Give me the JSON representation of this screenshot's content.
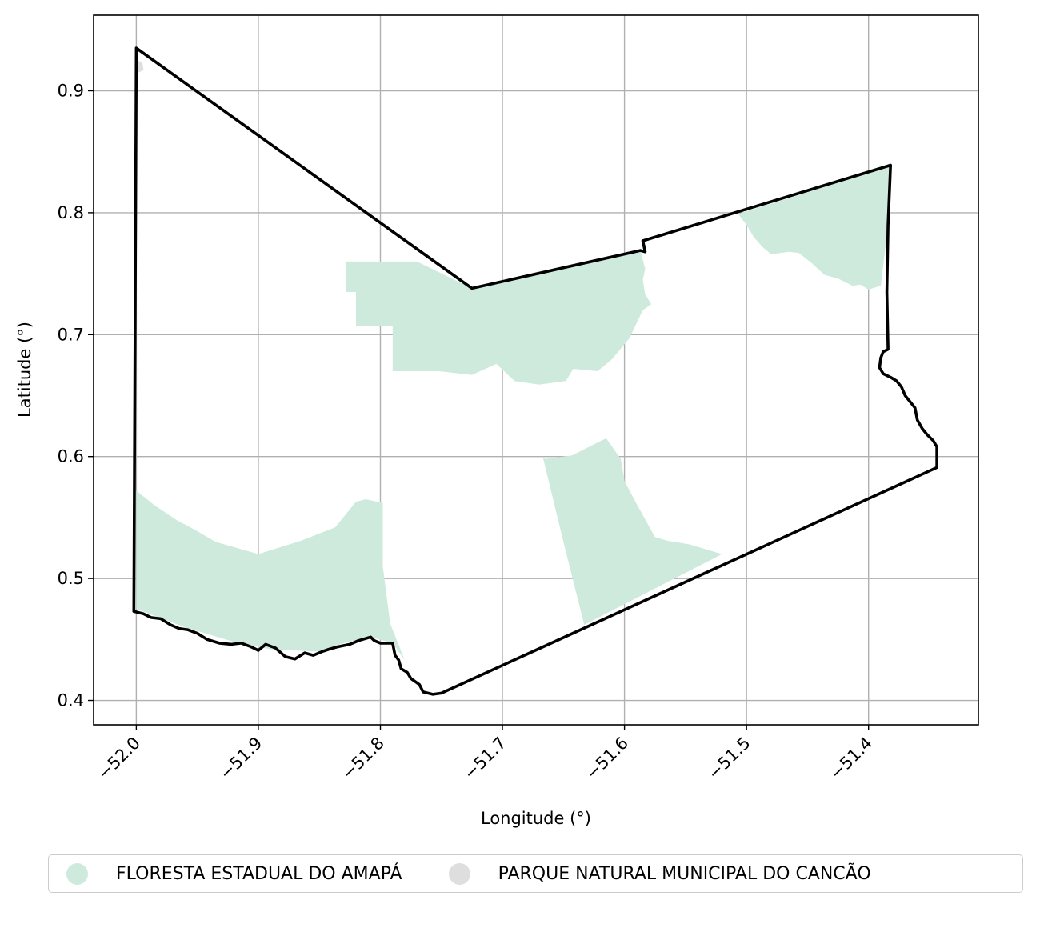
{
  "chart_data": {
    "type": "map",
    "title": "",
    "xlabel": "Longitude (°)",
    "ylabel": "Latitude (°)",
    "xlim": [
      -52.035,
      -51.31
    ],
    "ylim": [
      0.38,
      0.962
    ],
    "grid": true,
    "x_ticks": [
      -52.0,
      -51.9,
      -51.8,
      -51.7,
      -51.6,
      -51.5,
      -51.4
    ],
    "x_tick_labels": [
      "−52.0",
      "−51.9",
      "−51.8",
      "−51.7",
      "−51.6",
      "−51.5",
      "−51.4"
    ],
    "y_ticks": [
      0.4,
      0.5,
      0.6,
      0.7,
      0.8,
      0.9
    ],
    "y_tick_labels": [
      "0.4",
      "0.5",
      "0.6",
      "0.7",
      "0.8",
      "0.9"
    ],
    "colors": {
      "floresta": "#ceeadd",
      "parque": "#dedede",
      "boundary": "#000000",
      "grid": "#b0b0b0"
    },
    "layers": [
      {
        "name": "FLORESTA ESTADUAL DO AMAPÁ",
        "color": "#ceeadd",
        "polygons": [
          [
            [
              -51.828,
              0.76
            ],
            [
              -51.77,
              0.76
            ],
            [
              -51.725,
              0.738
            ],
            [
              -51.587,
              0.769
            ],
            [
              -51.583,
              0.754
            ],
            [
              -51.585,
              0.745
            ],
            [
              -51.583,
              0.733
            ],
            [
              -51.578,
              0.725
            ],
            [
              -51.585,
              0.72
            ],
            [
              -51.596,
              0.697
            ],
            [
              -51.61,
              0.68
            ],
            [
              -51.622,
              0.67
            ],
            [
              -51.642,
              0.672
            ],
            [
              -51.648,
              0.662
            ],
            [
              -51.67,
              0.659
            ],
            [
              -51.69,
              0.662
            ],
            [
              -51.705,
              0.676
            ],
            [
              -51.725,
              0.667
            ],
            [
              -51.752,
              0.67
            ],
            [
              -51.79,
              0.67
            ],
            [
              -51.79,
              0.707
            ],
            [
              -51.8,
              0.707
            ],
            [
              -51.82,
              0.707
            ],
            [
              -51.82,
              0.735
            ],
            [
              -51.828,
              0.735
            ]
          ],
          [
            [
              -51.507,
              0.799
            ],
            [
              -51.382,
              0.838
            ],
            [
              -51.384,
              0.79
            ],
            [
              -51.39,
              0.74
            ],
            [
              -51.4,
              0.737
            ],
            [
              -51.407,
              0.741
            ],
            [
              -51.413,
              0.74
            ],
            [
              -51.425,
              0.746
            ],
            [
              -51.436,
              0.749
            ],
            [
              -51.447,
              0.759
            ],
            [
              -51.457,
              0.767
            ],
            [
              -51.465,
              0.768
            ],
            [
              -51.48,
              0.766
            ],
            [
              -51.487,
              0.772
            ],
            [
              -51.494,
              0.78
            ],
            [
              -51.5,
              0.79
            ]
          ],
          [
            [
              -51.667,
              0.6
            ],
            [
              -51.665,
              0.598
            ],
            [
              -51.643,
              0.601
            ],
            [
              -51.615,
              0.615
            ],
            [
              -51.603,
              0.598
            ],
            [
              -51.6,
              0.58
            ],
            [
              -51.59,
              0.561
            ],
            [
              -51.575,
              0.534
            ],
            [
              -51.565,
              0.531
            ],
            [
              -51.547,
              0.528
            ],
            [
              -51.52,
              0.52
            ],
            [
              -51.633,
              0.462
            ],
            [
              -51.65,
              0.53
            ]
          ],
          [
            [
              -52.0,
              0.572
            ],
            [
              -51.985,
              0.56
            ],
            [
              -51.967,
              0.548
            ],
            [
              -51.952,
              0.54
            ],
            [
              -51.935,
              0.53
            ],
            [
              -51.9,
              0.52
            ],
            [
              -51.865,
              0.531
            ],
            [
              -51.837,
              0.542
            ],
            [
              -51.82,
              0.563
            ],
            [
              -51.812,
              0.565
            ],
            [
              -51.798,
              0.562
            ],
            [
              -51.798,
              0.51
            ],
            [
              -51.792,
              0.463
            ],
            [
              -51.78,
              0.433
            ],
            [
              -51.79,
              0.447
            ],
            [
              -51.808,
              0.452
            ],
            [
              -51.83,
              0.447
            ],
            [
              -51.85,
              0.44
            ],
            [
              -51.89,
              0.442
            ],
            [
              -51.92,
              0.448
            ],
            [
              -51.96,
              0.46
            ],
            [
              -52.0,
              0.475
            ]
          ]
        ]
      },
      {
        "name": "PARQUE NATURAL MUNICIPAL DO CANCÃO",
        "color": "#dedede",
        "polygons": [
          [
            [
              -51.999,
              0.925
            ],
            [
              -51.995,
              0.923
            ],
            [
              -51.994,
              0.917
            ],
            [
              -51.998,
              0.915
            ],
            [
              -51.999,
              0.918
            ]
          ]
        ]
      }
    ],
    "boundary": [
      [
        -52.0,
        0.935
      ],
      [
        -51.725,
        0.738
      ],
      [
        -51.587,
        0.769
      ],
      [
        -51.583,
        0.768
      ],
      [
        -51.585,
        0.777
      ],
      [
        -51.382,
        0.839
      ],
      [
        -51.384,
        0.79
      ],
      [
        -51.385,
        0.735
      ],
      [
        -51.384,
        0.688
      ],
      [
        -51.388,
        0.686
      ],
      [
        -51.39,
        0.681
      ],
      [
        -51.391,
        0.673
      ],
      [
        -51.388,
        0.668
      ],
      [
        -51.382,
        0.665
      ],
      [
        -51.377,
        0.662
      ],
      [
        -51.373,
        0.657
      ],
      [
        -51.37,
        0.65
      ],
      [
        -51.366,
        0.645
      ],
      [
        -51.362,
        0.64
      ],
      [
        -51.36,
        0.63
      ],
      [
        -51.356,
        0.623
      ],
      [
        -51.352,
        0.618
      ],
      [
        -51.347,
        0.613
      ],
      [
        -51.344,
        0.608
      ],
      [
        -51.344,
        0.6
      ],
      [
        -51.344,
        0.591
      ],
      [
        -51.75,
        0.406
      ],
      [
        -51.757,
        0.405
      ],
      [
        -51.765,
        0.407
      ],
      [
        -51.768,
        0.413
      ],
      [
        -51.775,
        0.418
      ],
      [
        -51.778,
        0.423
      ],
      [
        -51.783,
        0.426
      ],
      [
        -51.785,
        0.433
      ],
      [
        -51.788,
        0.437
      ],
      [
        -51.79,
        0.447
      ],
      [
        -51.8,
        0.447
      ],
      [
        -51.805,
        0.449
      ],
      [
        -51.808,
        0.452
      ],
      [
        -51.818,
        0.449
      ],
      [
        -51.825,
        0.446
      ],
      [
        -51.835,
        0.444
      ],
      [
        -51.842,
        0.442
      ],
      [
        -51.848,
        0.44
      ],
      [
        -51.855,
        0.437
      ],
      [
        -51.862,
        0.439
      ],
      [
        -51.87,
        0.434
      ],
      [
        -51.878,
        0.436
      ],
      [
        -51.886,
        0.443
      ],
      [
        -51.894,
        0.446
      ],
      [
        -51.9,
        0.441
      ],
      [
        -51.906,
        0.444
      ],
      [
        -51.914,
        0.447
      ],
      [
        -51.922,
        0.446
      ],
      [
        -51.932,
        0.447
      ],
      [
        -51.942,
        0.45
      ],
      [
        -51.95,
        0.455
      ],
      [
        -51.958,
        0.458
      ],
      [
        -51.965,
        0.459
      ],
      [
        -51.972,
        0.462
      ],
      [
        -51.98,
        0.467
      ],
      [
        -51.988,
        0.468
      ],
      [
        -51.994,
        0.471
      ],
      [
        -52.002,
        0.473
      ],
      [
        -52.0,
        0.935
      ]
    ]
  },
  "legend": {
    "items": [
      {
        "label": "FLORESTA ESTADUAL DO AMAPÁ",
        "color": "#ceeadd"
      },
      {
        "label": "PARQUE NATURAL MUNICIPAL DO CANCÃO",
        "color": "#dedede"
      }
    ]
  }
}
